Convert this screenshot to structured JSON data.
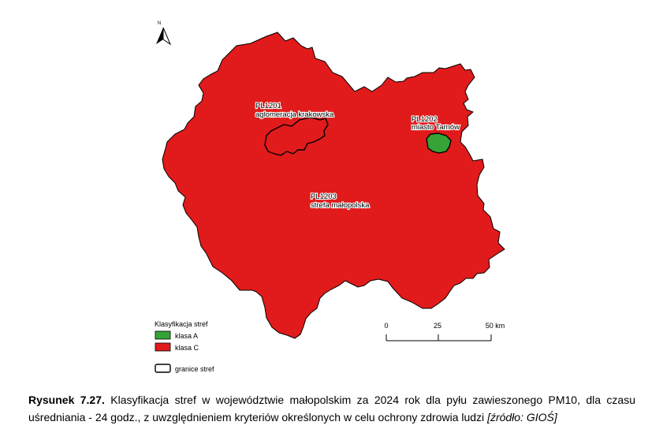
{
  "map": {
    "north_label": "N",
    "colors": {
      "klasa_A": "#36a336",
      "klasa_C": "#e11b1b",
      "border": "#000000"
    },
    "zones": [
      {
        "code": "PL1201",
        "name": "aglomeracja krakowska",
        "class": "klasa C"
      },
      {
        "code": "PL1202",
        "name": "miasto Tarnów",
        "class": "klasa A"
      },
      {
        "code": "PL1203",
        "name": "strefa małopolska",
        "class": "klasa C"
      }
    ]
  },
  "legend": {
    "title": "Klasyfikacja stref",
    "items": [
      {
        "label": "klasa A",
        "color": "#36a336"
      },
      {
        "label": "klasa C",
        "color": "#e11b1b"
      }
    ],
    "boundary_label": "granice stref"
  },
  "scalebar": {
    "ticks": [
      "0",
      "25",
      "50 km"
    ]
  },
  "caption": {
    "label": "Rysunek 7.27.",
    "text": "Klasyfikacja stref w województwie małopolskim za 2024 rok dla pyłu zawieszonego PM10, dla czasu uśredniania - 24 godz., z uwzględnieniem kryteriów określonych w celu ochrony zdrowia ludzi",
    "source": "[źródło: GIOŚ]"
  }
}
